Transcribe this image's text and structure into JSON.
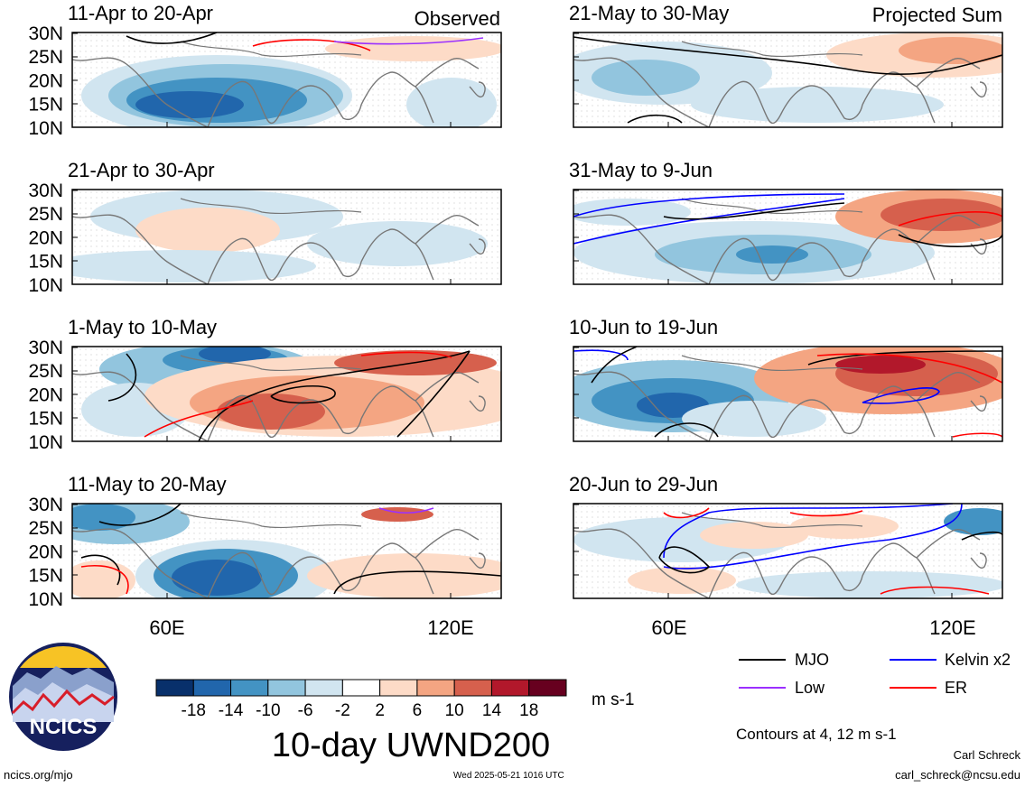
{
  "figure": {
    "title": "10-day UWND200",
    "units": "m s-1",
    "contour_note": "Contours at 4, 12 m s-1",
    "author": "Carl Schreck",
    "email": "carl_schreck@ncsu.edu",
    "site": "ncics.org/mjo",
    "timestamp": "Wed 2025-05-21 1016 UTC",
    "logo_text": "NCICS",
    "colors": {
      "mjo": "#000000",
      "low": "#9b30ff",
      "kelvin": "#0000ff",
      "er": "#ff0000"
    }
  },
  "columns": [
    {
      "label": "Observed"
    },
    {
      "label": "Projected Sum"
    }
  ],
  "panels": [
    {
      "col": 0,
      "row": 0,
      "title": "11-Apr to 20-Apr"
    },
    {
      "col": 0,
      "row": 1,
      "title": "21-Apr to 30-Apr"
    },
    {
      "col": 0,
      "row": 2,
      "title": "1-May to 10-May"
    },
    {
      "col": 0,
      "row": 3,
      "title": "11-May to 20-May"
    },
    {
      "col": 1,
      "row": 0,
      "title": "21-May to 30-May"
    },
    {
      "col": 1,
      "row": 1,
      "title": "31-May to 9-Jun"
    },
    {
      "col": 1,
      "row": 2,
      "title": "10-Jun to 19-Jun"
    },
    {
      "col": 1,
      "row": 3,
      "title": "20-Jun to 29-Jun"
    }
  ],
  "y_ticks": [
    "30N",
    "25N",
    "20N",
    "15N",
    "10N"
  ],
  "x_ticks": [
    "60E",
    "120E"
  ],
  "colorbar": {
    "ticks": [
      "-18",
      "-14",
      "-10",
      "-6",
      "-2",
      "2",
      "6",
      "10",
      "14",
      "18"
    ],
    "colors": [
      "#08306b",
      "#2166ac",
      "#4393c3",
      "#92c5de",
      "#d1e5f0",
      "#ffffff",
      "#fddbc7",
      "#f4a582",
      "#d6604d",
      "#b2182b",
      "#67001f"
    ]
  },
  "legend": [
    {
      "name": "MJO",
      "color": "#000000"
    },
    {
      "name": "Kelvin x2",
      "color": "#0000ff"
    },
    {
      "name": "Low",
      "color": "#9b30ff"
    },
    {
      "name": "ER",
      "color": "#ff0000"
    }
  ]
}
